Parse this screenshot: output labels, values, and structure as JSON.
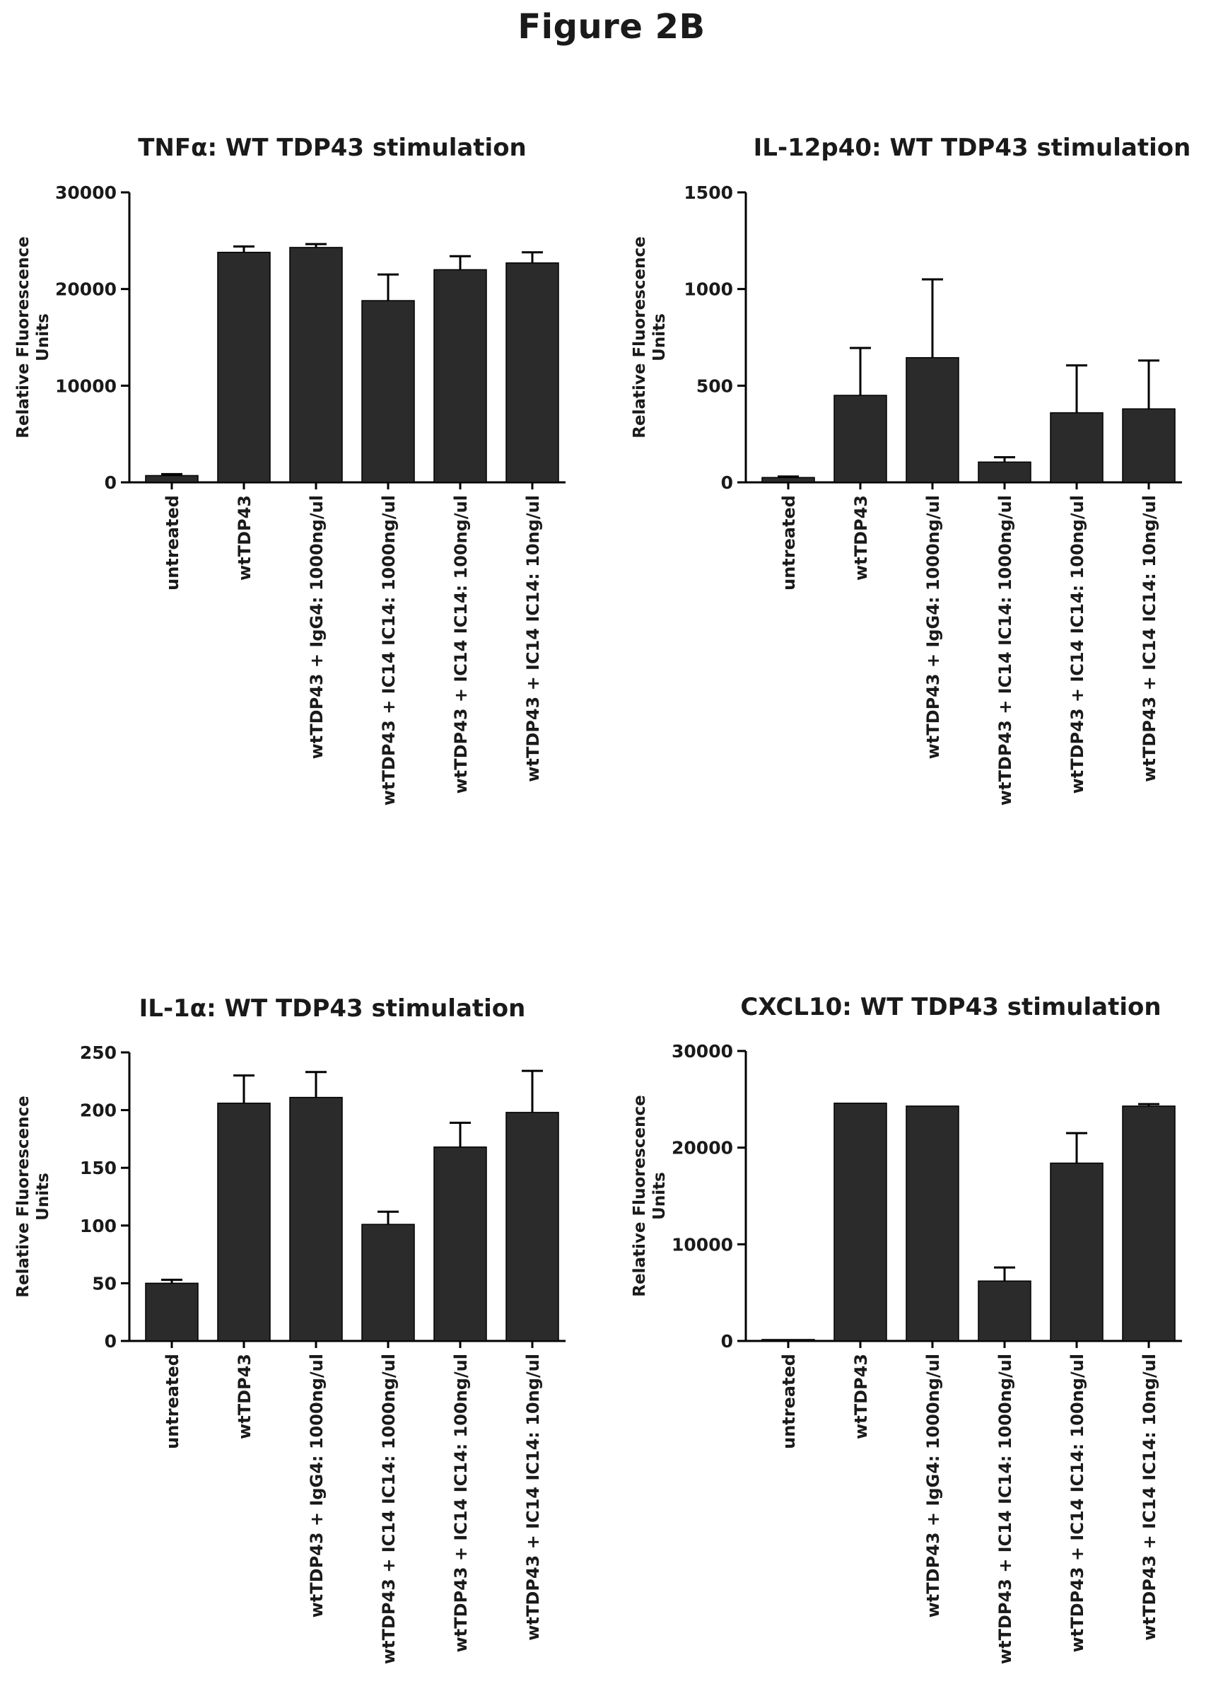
{
  "figure_title": "Figure 2B",
  "chart_data": [
    {
      "type": "bar",
      "title": "TNFα: WT TDP43 stimulation",
      "ylabel": [
        "Relative Fluorescence",
        "Units"
      ],
      "xlabel": "",
      "categories": [
        "untreated",
        "wtTDP43",
        "wtTDP43 + IgG4: 1000ng/ul",
        "wtTDP43 + IC14 IC14: 1000ng/ul",
        "wtTDP43 + IC14 IC14: 100ng/ul",
        "wtTDP43 + IC14 IC14: 10ng/ul"
      ],
      "values": [
        700,
        23800,
        24300,
        18800,
        22000,
        22700
      ],
      "error": [
        150,
        600,
        350,
        2700,
        1400,
        1100
      ],
      "ylim": [
        0,
        30000
      ],
      "yticks": [
        0,
        10000,
        20000,
        30000
      ],
      "grid": false,
      "bar_color": "#2b2b2b"
    },
    {
      "type": "bar",
      "title": "IL-12p40: WT TDP43 stimulation",
      "ylabel": [
        "Relative Fluorescence",
        "Units"
      ],
      "xlabel": "",
      "categories": [
        "untreated",
        "wtTDP43",
        "wtTDP43 + IgG4: 1000ng/ul",
        "wtTDP43 + IC14 IC14: 1000ng/ul",
        "wtTDP43 + IC14 IC14: 100ng/ul",
        "wtTDP43 + IC14 IC14: 10ng/ul"
      ],
      "values": [
        25,
        450,
        645,
        105,
        360,
        380
      ],
      "error": [
        5,
        245,
        405,
        25,
        245,
        250
      ],
      "ylim": [
        0,
        1500
      ],
      "yticks": [
        0,
        500,
        1000,
        1500
      ],
      "grid": false,
      "bar_color": "#2b2b2b"
    },
    {
      "type": "bar",
      "title": "IL-1α:   WT TDP43 stimulation",
      "ylabel": [
        "Relative Fluorescence",
        "Units"
      ],
      "xlabel": "",
      "categories": [
        "untreated",
        "wtTDP43",
        "wtTDP43 + IgG4: 1000ng/ul",
        "wtTDP43 + IC14 IC14: 1000ng/ul",
        "wtTDP43 + IC14 IC14: 100ng/ul",
        "wtTDP43 + IC14 IC14: 10ng/ul"
      ],
      "values": [
        50,
        206,
        211,
        101,
        168,
        198
      ],
      "error": [
        3,
        24,
        22,
        11,
        21,
        36
      ],
      "ylim": [
        0,
        250
      ],
      "yticks": [
        0,
        50,
        100,
        150,
        200,
        250
      ],
      "grid": false,
      "bar_color": "#2b2b2b"
    },
    {
      "type": "bar",
      "title": "CXCL10: WT TDP43 stimulation",
      "ylabel": [
        "Relative Fluorescence",
        "Units"
      ],
      "xlabel": "",
      "categories": [
        "untreated",
        "wtTDP43",
        "wtTDP43 + IgG4: 1000ng/ul",
        "wtTDP43 + IC14 IC14: 1000ng/ul",
        "wtTDP43 + IC14 IC14: 100ng/ul",
        "wtTDP43 + IC14 IC14: 10ng/ul"
      ],
      "values": [
        150,
        24600,
        24300,
        6200,
        18400,
        24300
      ],
      "error": [
        0,
        0,
        0,
        1400,
        3100,
        200
      ],
      "ylim": [
        0,
        30000
      ],
      "yticks": [
        0,
        10000,
        20000,
        30000
      ],
      "grid": false,
      "bar_color": "#2b2b2b"
    }
  ]
}
